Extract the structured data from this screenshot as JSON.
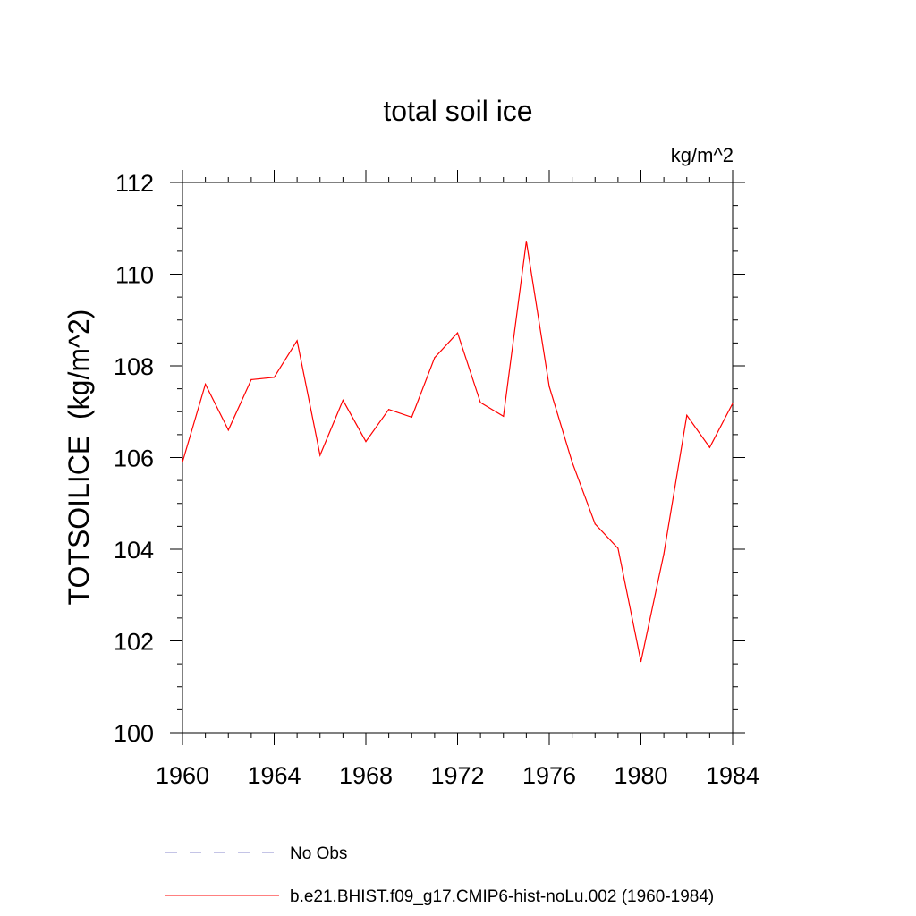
{
  "chart_data": {
    "type": "line",
    "title": "total soil ice",
    "units": "kg/m^2",
    "xlabel": "",
    "ylabel": "TOTSOILICE  (kg/m^2)",
    "xlim": [
      1960,
      1984
    ],
    "ylim": [
      100,
      112
    ],
    "x_ticks": [
      1960,
      1964,
      1968,
      1972,
      1976,
      1980,
      1984
    ],
    "y_ticks": [
      100,
      102,
      104,
      106,
      108,
      110,
      112
    ],
    "grid": false,
    "legend_position": "bottom",
    "series": [
      {
        "name": "b.e21.BHIST.f09_g17.CMIP6-hist-noLu.002 (1960-1984)",
        "color": "#ff0000",
        "style": "solid",
        "x": [
          1960,
          1961,
          1962,
          1963,
          1964,
          1965,
          1966,
          1967,
          1968,
          1969,
          1970,
          1971,
          1972,
          1973,
          1974,
          1975,
          1976,
          1977,
          1978,
          1979,
          1980,
          1981,
          1982,
          1983,
          1984
        ],
        "y": [
          105.9,
          107.6,
          106.6,
          107.7,
          107.75,
          108.55,
          106.05,
          107.25,
          106.35,
          107.05,
          106.88,
          108.18,
          108.72,
          107.2,
          106.9,
          110.72,
          107.55,
          105.9,
          104.55,
          104.02,
          101.55,
          103.9,
          106.92,
          106.22,
          107.18
        ]
      }
    ],
    "legend": [
      {
        "label": "No Obs",
        "color": "#8888cc",
        "style": "dashed"
      },
      {
        "label": "b.e21.BHIST.f09_g17.CMIP6-hist-noLu.002 (1960-1984)",
        "color": "#ff0000",
        "style": "solid"
      }
    ]
  }
}
